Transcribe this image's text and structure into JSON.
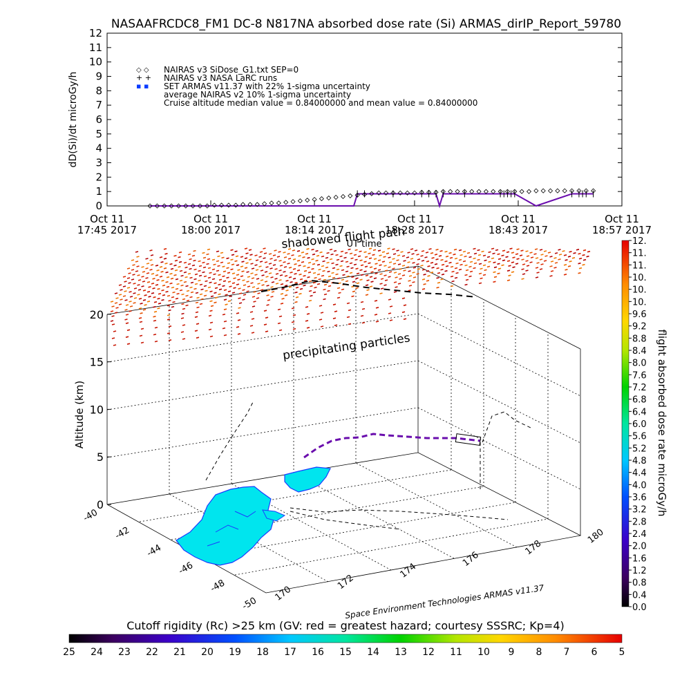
{
  "page": {
    "title": "NASAAFRCDC8_FM1 DC-8   N817NA absorbed dose rate (Si) ARMAS_dirIP_Report_59780",
    "credit": "Space Environment Technologies ARMAS v11.37",
    "bottom_label": "Cutoff rigidity (Rc) >25 km (GV: red = greatest hazard; courtesy SSSRC; Kp=4)",
    "colors": {
      "shadow_flight": "#000000",
      "armas_dose": "#6a0dad",
      "sigma": "#0a3cff",
      "land": "#00e5ee",
      "coast": "#1a3cff"
    }
  },
  "chart_data": [
    {
      "type": "scatter",
      "name": "dose_rate_timeseries",
      "ylabel": "dD(Si)/dt microGy/h",
      "xlabel": "UT time",
      "ylim": [
        0,
        12
      ],
      "yticks": [
        "0",
        "1",
        "2",
        "3",
        "4",
        "5",
        "6",
        "7",
        "8",
        "9",
        "10",
        "11",
        "12"
      ],
      "xlim": [
        0,
        72
      ],
      "xtick_labels": [
        {
          "t": 0,
          "date": "Oct 11",
          "time": "17:45 2017"
        },
        {
          "t": 14.5,
          "date": "Oct 11",
          "time": "18:00 2017"
        },
        {
          "t": 29,
          "date": "Oct 11",
          "time": "18:14 2017"
        },
        {
          "t": 43,
          "date": "Oct 11",
          "time": "18:28 2017"
        },
        {
          "t": 57.5,
          "date": "Oct 11",
          "time": "18:43 2017"
        },
        {
          "t": 72,
          "date": "Oct 11",
          "time": "18:57 2017"
        }
      ],
      "legend": [
        {
          "symbol": "◇ ◇",
          "text": "NAIRAS v3 SiDose_G1.txt SEP=0"
        },
        {
          "symbol": "+ +",
          "text": "NAIRAS v3 NASA LaRC runs"
        },
        {
          "symbol": "▪ ▪",
          "text": "SET ARMAS v11.37 with 22% 1-sigma uncertainty"
        },
        {
          "symbol": "",
          "text": "average NAIRAS v2 10% 1-sigma uncertainty"
        },
        {
          "symbol": "",
          "text": "Cruise altitude median value = 0.84000000 and mean value = 0.84000000"
        }
      ],
      "series": [
        {
          "name": "NAIRAS v3 SiDose_G1.txt SEP=0",
          "marker": "diamond",
          "x": [
            6,
            7,
            8,
            9,
            10,
            11,
            12,
            13,
            14,
            15,
            16,
            17,
            18,
            19,
            20,
            21,
            22,
            23,
            24,
            25,
            26,
            27,
            28,
            29,
            30,
            31,
            32,
            33,
            34,
            35,
            36,
            37,
            38,
            39,
            40,
            41,
            42,
            43,
            44,
            45,
            46,
            47,
            48,
            49,
            50,
            51,
            52,
            53,
            54,
            55,
            56,
            57,
            58,
            59,
            60,
            61,
            62,
            63,
            64,
            65,
            66,
            67,
            68
          ],
          "y": [
            0,
            0,
            0,
            0,
            0,
            0,
            0,
            0,
            0,
            0.05,
            0.05,
            0.05,
            0.05,
            0.1,
            0.1,
            0.1,
            0.15,
            0.2,
            0.2,
            0.25,
            0.3,
            0.35,
            0.4,
            0.45,
            0.5,
            0.55,
            0.6,
            0.65,
            0.7,
            0.75,
            0.8,
            0.85,
            0.9,
            0.9,
            0.9,
            0.9,
            0.9,
            0.9,
            0.95,
            0.95,
            0.95,
            1.0,
            1.0,
            1.0,
            1.0,
            1.0,
            1.0,
            1.0,
            1.0,
            1.0,
            1.0,
            1.0,
            1.0,
            1.0,
            1.05,
            1.05,
            1.05,
            1.05,
            1.05,
            1.05,
            1.05,
            1.05,
            1.05
          ]
        },
        {
          "name": "SET ARMAS v11.37",
          "marker": "line",
          "x": [
            6,
            10,
            15,
            20,
            25,
            30,
            34.5,
            35,
            36,
            40,
            44,
            45,
            46,
            46.5,
            47,
            50,
            55,
            55.5,
            56,
            56.5,
            57,
            60,
            65,
            66,
            66.5,
            67,
            68
          ],
          "y": [
            0,
            0,
            0,
            0,
            0,
            0,
            0,
            0.84,
            0.84,
            0.84,
            0.84,
            0.84,
            0.84,
            0,
            0.84,
            0.84,
            0.84,
            0.84,
            0.84,
            0.84,
            0.84,
            0,
            0.84,
            0.84,
            0.84,
            0.84,
            0.84
          ]
        }
      ]
    },
    {
      "type": "scatter",
      "name": "flight_track_3d",
      "zlabel": "Altitude (km)",
      "zticks": [
        "0",
        "5",
        "10",
        "15",
        "20"
      ],
      "lat_ticks": [
        "-40",
        "-42",
        "-44",
        "-46",
        "-48",
        "-50"
      ],
      "lon_ticks": [
        "170",
        "172",
        "174",
        "176",
        "178",
        "180"
      ],
      "annotations": [
        "shadowed flight path",
        "precipitating particles"
      ],
      "colorbar": {
        "label": "flight absorbed dose rate microGy/h",
        "ticks": [
          "0.0",
          "0.4",
          "0.8",
          "1.2",
          "1.6",
          "2.0",
          "2.4",
          "2.8",
          "3.2",
          "3.6",
          "4.0",
          "4.4",
          "4.8",
          "5.2",
          "5.6",
          "6.0",
          "6.4",
          "6.8",
          "7.2",
          "7.6",
          "8.0",
          "8.4",
          "8.8",
          "9.2",
          "9.6",
          "10.",
          "10.",
          "10.",
          "11.",
          "11.",
          "12."
        ]
      }
    },
    {
      "type": "heatmap",
      "name": "cutoff_rigidity_colorbar",
      "ticks": [
        "25",
        "24",
        "23",
        "22",
        "21",
        "20",
        "19",
        "18",
        "17",
        "16",
        "15",
        "14",
        "13",
        "12",
        "11",
        "10",
        "9",
        "8",
        "7",
        "6",
        "5"
      ]
    }
  ]
}
